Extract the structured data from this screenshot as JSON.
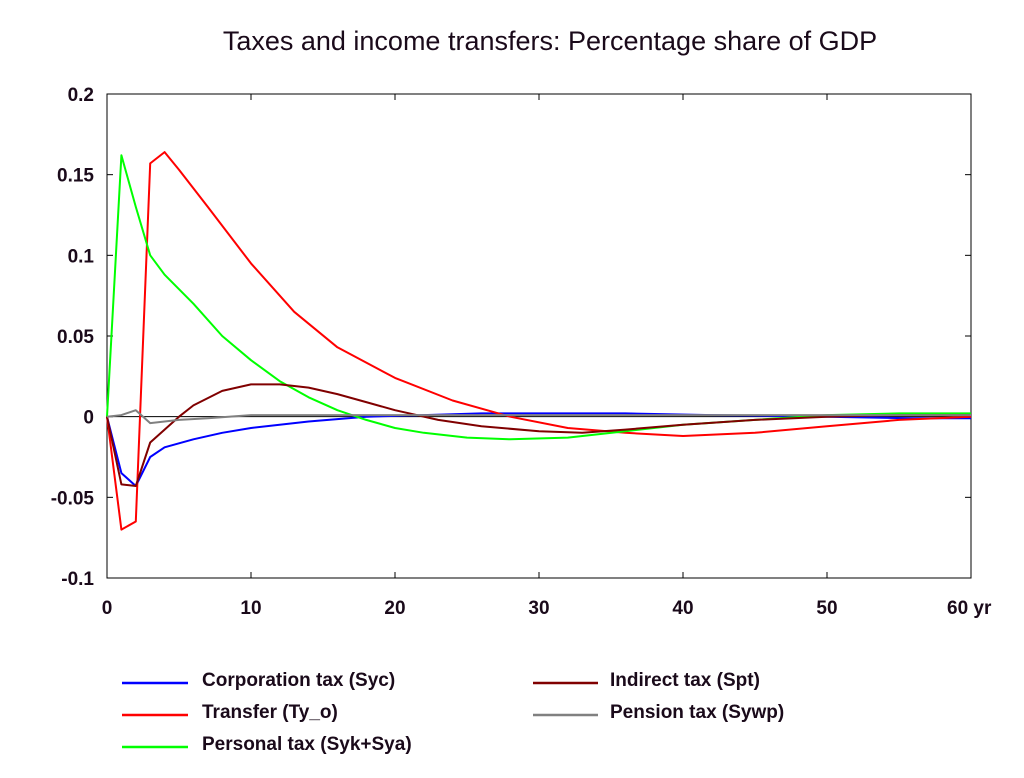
{
  "chart_data": {
    "type": "line",
    "title": "Taxes and income transfers: Percentage share of GDP",
    "xlabel": "",
    "ylabel": "",
    "xlim": [
      0,
      60
    ],
    "ylim": [
      -0.1,
      0.2
    ],
    "x_ticks": [
      {
        "value": 0,
        "label": "0"
      },
      {
        "value": 10,
        "label": "10"
      },
      {
        "value": 20,
        "label": "20"
      },
      {
        "value": 30,
        "label": "30"
      },
      {
        "value": 40,
        "label": "40"
      },
      {
        "value": 50,
        "label": "50"
      },
      {
        "value": 60,
        "label": "60 yr"
      }
    ],
    "y_ticks": [
      {
        "value": 0.2,
        "label": "0.2"
      },
      {
        "value": 0.15,
        "label": "0.15"
      },
      {
        "value": 0.1,
        "label": "0.1"
      },
      {
        "value": 0.05,
        "label": "0.05"
      },
      {
        "value": 0,
        "label": "0"
      },
      {
        "value": -0.05,
        "label": "-0.05"
      },
      {
        "value": -0.1,
        "label": "-0.1"
      }
    ],
    "grid": false,
    "legend_position": "bottom",
    "series": [
      {
        "name": "Corporation tax (Syc)",
        "color": "#0000ff",
        "points": [
          [
            0,
            0
          ],
          [
            1,
            -0.035
          ],
          [
            2,
            -0.043
          ],
          [
            3,
            -0.025
          ],
          [
            4,
            -0.019
          ],
          [
            6,
            -0.014
          ],
          [
            8,
            -0.01
          ],
          [
            10,
            -0.007
          ],
          [
            14,
            -0.003
          ],
          [
            18,
            0
          ],
          [
            22,
            0.001
          ],
          [
            26,
            0.002
          ],
          [
            30,
            0.002
          ],
          [
            36,
            0.002
          ],
          [
            42,
            0.001
          ],
          [
            50,
            0
          ],
          [
            56,
            -0.001
          ],
          [
            60,
            -0.001
          ]
        ]
      },
      {
        "name": "Transfer (Ty_o)",
        "color": "#ff0000",
        "points": [
          [
            0,
            0
          ],
          [
            1,
            -0.07
          ],
          [
            2,
            -0.065
          ],
          [
            3,
            0.157
          ],
          [
            4,
            0.164
          ],
          [
            5,
            0.153
          ],
          [
            7,
            0.13
          ],
          [
            10,
            0.095
          ],
          [
            13,
            0.065
          ],
          [
            16,
            0.043
          ],
          [
            20,
            0.024
          ],
          [
            24,
            0.01
          ],
          [
            28,
            0
          ],
          [
            32,
            -0.007
          ],
          [
            36,
            -0.01
          ],
          [
            40,
            -0.012
          ],
          [
            45,
            -0.01
          ],
          [
            50,
            -0.006
          ],
          [
            55,
            -0.002
          ],
          [
            60,
            0
          ]
        ]
      },
      {
        "name": "Personal tax (Syk+Sya)",
        "color": "#00ff00",
        "points": [
          [
            0,
            0
          ],
          [
            1,
            0.162
          ],
          [
            2,
            0.13
          ],
          [
            3,
            0.1
          ],
          [
            4,
            0.088
          ],
          [
            6,
            0.07
          ],
          [
            8,
            0.05
          ],
          [
            10,
            0.035
          ],
          [
            12,
            0.022
          ],
          [
            14,
            0.012
          ],
          [
            16,
            0.004
          ],
          [
            18,
            -0.002
          ],
          [
            20,
            -0.007
          ],
          [
            22,
            -0.01
          ],
          [
            25,
            -0.013
          ],
          [
            28,
            -0.014
          ],
          [
            32,
            -0.013
          ],
          [
            36,
            -0.009
          ],
          [
            40,
            -0.005
          ],
          [
            45,
            -0.002
          ],
          [
            50,
            0.001
          ],
          [
            55,
            0.002
          ],
          [
            60,
            0.002
          ]
        ]
      },
      {
        "name": "Indirect tax (Spt)",
        "color": "#800000",
        "points": [
          [
            0,
            0
          ],
          [
            1,
            -0.042
          ],
          [
            2,
            -0.043
          ],
          [
            3,
            -0.016
          ],
          [
            4,
            -0.008
          ],
          [
            5,
            0
          ],
          [
            6,
            0.007
          ],
          [
            8,
            0.016
          ],
          [
            10,
            0.02
          ],
          [
            12,
            0.02
          ],
          [
            14,
            0.018
          ],
          [
            16,
            0.014
          ],
          [
            18,
            0.009
          ],
          [
            20,
            0.004
          ],
          [
            23,
            -0.002
          ],
          [
            26,
            -0.006
          ],
          [
            30,
            -0.009
          ],
          [
            33,
            -0.01
          ],
          [
            36,
            -0.008
          ],
          [
            40,
            -0.005
          ],
          [
            45,
            -0.002
          ],
          [
            50,
            0
          ],
          [
            55,
            0.001
          ],
          [
            60,
            0.001
          ]
        ]
      },
      {
        "name": "Pension tax (Sywp)",
        "color": "#808080",
        "points": [
          [
            0,
            0
          ],
          [
            1,
            0.001
          ],
          [
            2,
            0.004
          ],
          [
            3,
            -0.004
          ],
          [
            4,
            -0.003
          ],
          [
            5,
            -0.002
          ],
          [
            7,
            -0.001
          ],
          [
            10,
            0.001
          ],
          [
            15,
            0.001
          ],
          [
            20,
            0.001
          ],
          [
            30,
            0.001
          ],
          [
            40,
            0.001
          ],
          [
            50,
            0.001
          ],
          [
            60,
            0.001
          ]
        ]
      }
    ]
  }
}
